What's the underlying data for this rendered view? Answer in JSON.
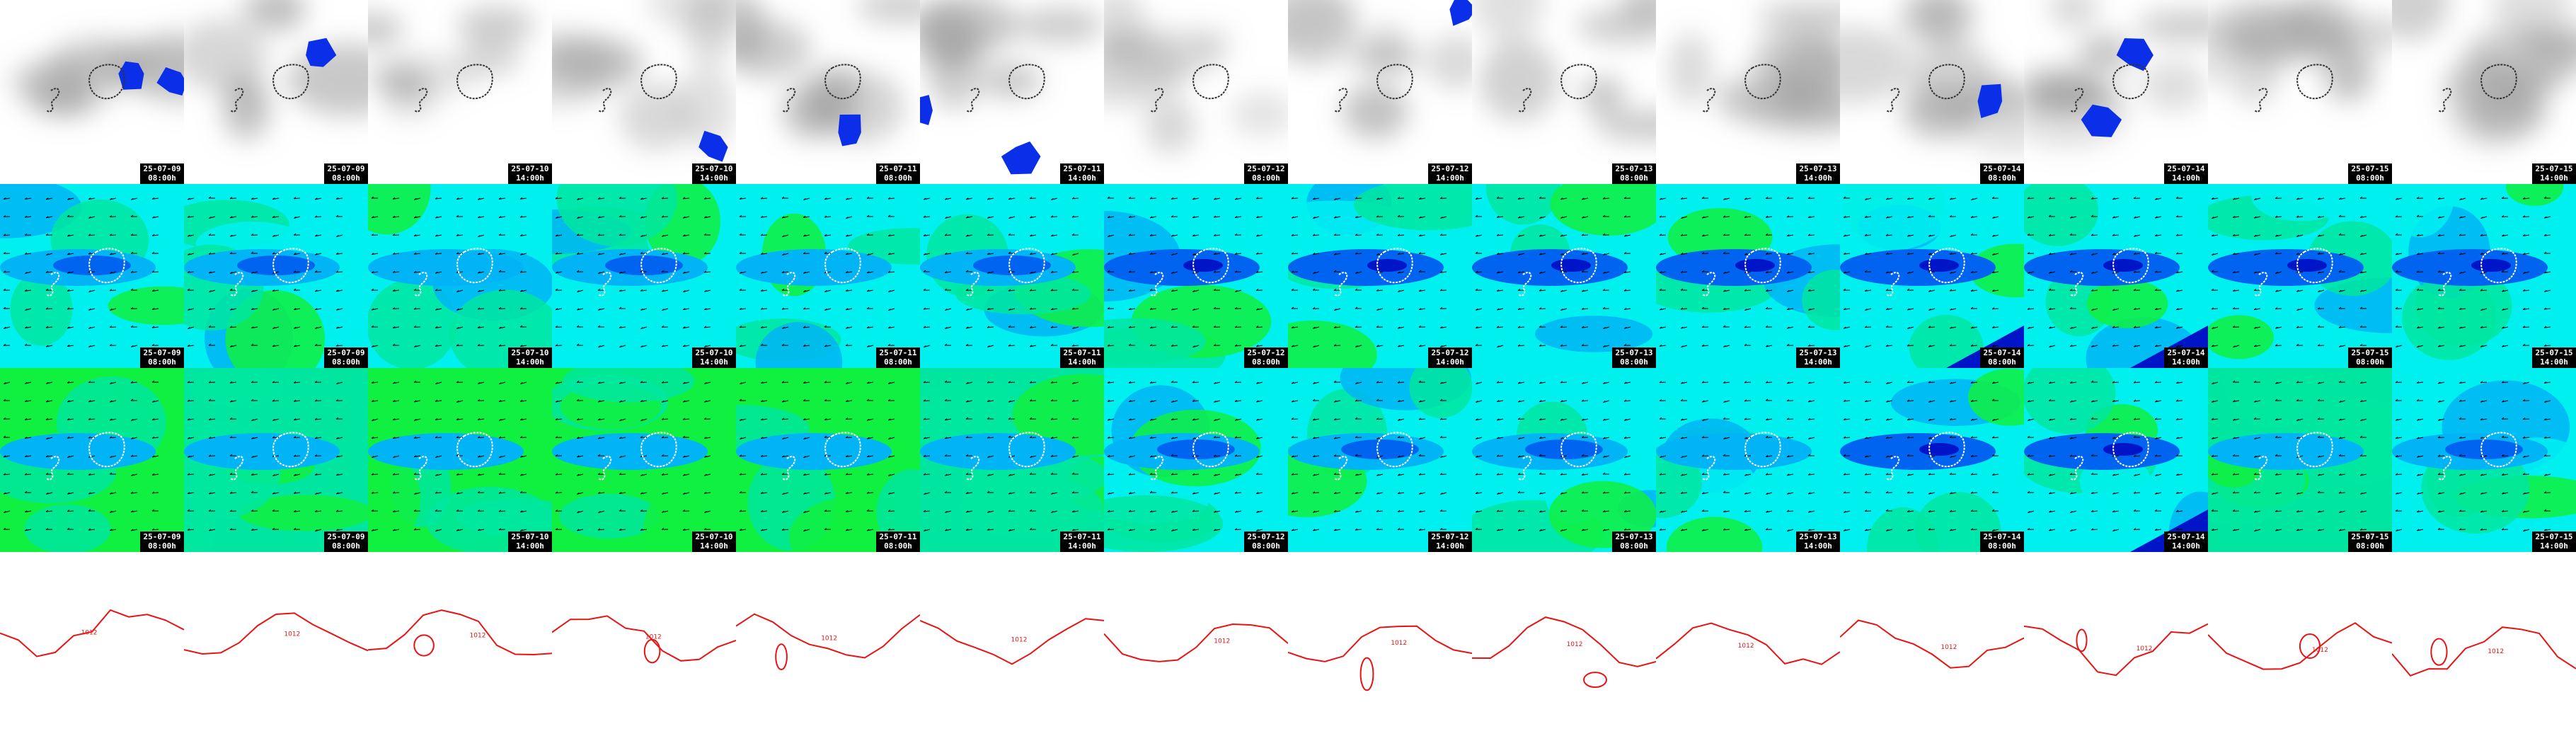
{
  "layout": {
    "columns": 14,
    "rows": 4
  },
  "rows": [
    {
      "id": "precipitation",
      "style": "cloud",
      "colors": {
        "background": "#ffffff",
        "cloud": "#9a9a9a",
        "precip": "#0b2fe8",
        "coast": "#333333"
      },
      "tiles": [
        {
          "date": "25-07-09",
          "time": "08:00h",
          "precip": [
            [
              0.72,
              0.4
            ],
            [
              0.95,
              0.45
            ]
          ]
        },
        {
          "date": "25-07-09",
          "time": "08:00h",
          "precip": [
            [
              0.72,
              0.3
            ]
          ]
        },
        {
          "date": "25-07-10",
          "time": "14:00h",
          "precip": []
        },
        {
          "date": "25-07-10",
          "time": "14:00h",
          "precip": [
            [
              0.88,
              0.8
            ]
          ]
        },
        {
          "date": "25-07-11",
          "time": "08:00h",
          "precip": [
            [
              0.62,
              0.72
            ]
          ]
        },
        {
          "date": "25-07-11",
          "time": "14:00h",
          "precip": [
            [
              0.55,
              0.85
            ],
            [
              0.0,
              0.6
            ]
          ]
        },
        {
          "date": "25-07-12",
          "time": "08:00h",
          "precip": []
        },
        {
          "date": "25-07-12",
          "time": "14:00h",
          "precip": [
            [
              0.95,
              0.05
            ]
          ]
        },
        {
          "date": "25-07-13",
          "time": "08:00h",
          "precip": []
        },
        {
          "date": "25-07-13",
          "time": "14:00h",
          "precip": []
        },
        {
          "date": "25-07-14",
          "time": "08:00h",
          "precip": [
            [
              0.82,
              0.55
            ]
          ]
        },
        {
          "date": "25-07-14",
          "time": "14:00h",
          "precip": [
            [
              0.6,
              0.3
            ],
            [
              0.42,
              0.65
            ]
          ]
        },
        {
          "date": "25-07-15",
          "time": "08:00h",
          "precip": []
        },
        {
          "date": "25-07-15",
          "time": "14:00h",
          "precip": []
        }
      ]
    },
    {
      "id": "wind-upper",
      "style": "wind",
      "colors": {
        "c1": "#00f0f0",
        "c2": "#00b4f5",
        "c3": "#0064f0",
        "c4": "#0014c8",
        "c5": "#00e6a0",
        "c6": "#10f040",
        "arrow": "#000000"
      },
      "tiles": [
        {
          "date": "25-07-09",
          "time": "08:00h",
          "level": 1
        },
        {
          "date": "25-07-09",
          "time": "08:00h",
          "level": 1
        },
        {
          "date": "25-07-10",
          "time": "14:00h",
          "level": 0
        },
        {
          "date": "25-07-10",
          "time": "14:00h",
          "level": 1
        },
        {
          "date": "25-07-11",
          "time": "08:00h",
          "level": 0
        },
        {
          "date": "25-07-11",
          "time": "14:00h",
          "level": 1
        },
        {
          "date": "25-07-12",
          "time": "08:00h",
          "level": 2
        },
        {
          "date": "25-07-12",
          "time": "14:00h",
          "level": 2
        },
        {
          "date": "25-07-13",
          "time": "08:00h",
          "level": 2
        },
        {
          "date": "25-07-13",
          "time": "14:00h",
          "level": 2
        },
        {
          "date": "25-07-14",
          "time": "08:00h",
          "level": 3
        },
        {
          "date": "25-07-14",
          "time": "14:00h",
          "level": 3
        },
        {
          "date": "25-07-15",
          "time": "08:00h",
          "level": 2
        },
        {
          "date": "25-07-15",
          "time": "14:00h",
          "level": 2
        }
      ]
    },
    {
      "id": "wind-lower",
      "style": "wind",
      "colors": {
        "c1": "#00f0f0",
        "c2": "#00b4f5",
        "c3": "#0064f0",
        "c4": "#0014c8",
        "c5": "#00e6a0",
        "c6": "#10f040",
        "arrow": "#000000"
      },
      "tiles": [
        {
          "date": "25-07-09",
          "time": "08:00h",
          "level": -2
        },
        {
          "date": "25-07-09",
          "time": "08:00h",
          "level": -1
        },
        {
          "date": "25-07-10",
          "time": "14:00h",
          "level": -2
        },
        {
          "date": "25-07-10",
          "time": "14:00h",
          "level": -2
        },
        {
          "date": "25-07-11",
          "time": "08:00h",
          "level": -2
        },
        {
          "date": "25-07-11",
          "time": "14:00h",
          "level": -1
        },
        {
          "date": "25-07-12",
          "time": "08:00h",
          "level": 1
        },
        {
          "date": "25-07-12",
          "time": "14:00h",
          "level": 1
        },
        {
          "date": "25-07-13",
          "time": "08:00h",
          "level": 1
        },
        {
          "date": "25-07-13",
          "time": "14:00h",
          "level": 0
        },
        {
          "date": "25-07-14",
          "time": "08:00h",
          "level": 2
        },
        {
          "date": "25-07-14",
          "time": "14:00h",
          "level": 3
        },
        {
          "date": "25-07-15",
          "time": "08:00h",
          "level": -1
        },
        {
          "date": "25-07-15",
          "time": "14:00h",
          "level": 1
        }
      ]
    },
    {
      "id": "pressure-isobars",
      "style": "isobar",
      "colors": {
        "background": "#ffffff",
        "line": "#e81414",
        "label": "#e81414"
      },
      "tiles": [
        {
          "label": "1012"
        },
        {
          "label": "1012"
        },
        {
          "label": "1012"
        },
        {
          "label": "1012"
        },
        {
          "label": "1012"
        },
        {
          "label": "1012"
        },
        {
          "label": "1012"
        },
        {
          "label": "1012"
        },
        {
          "label": "1012"
        },
        {
          "label": "1012"
        },
        {
          "label": "1012"
        },
        {
          "label": "1012"
        },
        {
          "label": "1012"
        },
        {
          "label": "1012"
        }
      ]
    }
  ]
}
